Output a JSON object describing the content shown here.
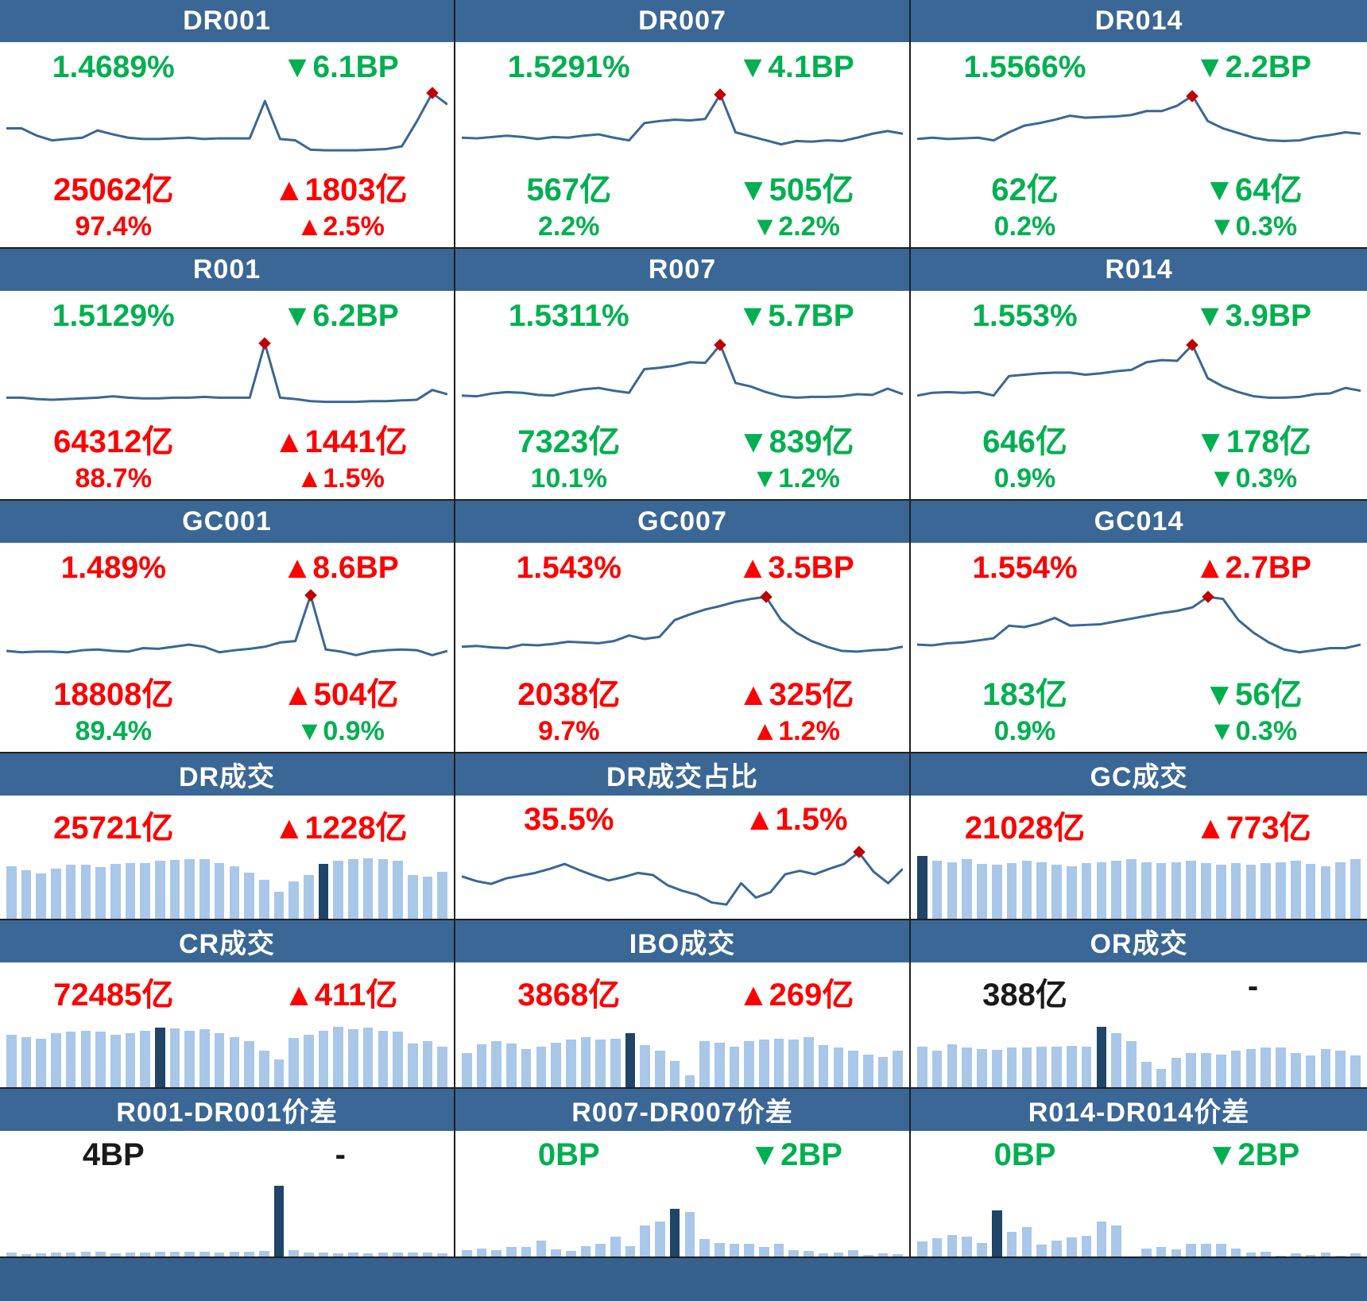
{
  "colors": {
    "header_bg": "#3A6795",
    "footer_bg": "#36618F",
    "line": "#3A6795",
    "bar_light": "#A9C7E8",
    "bar_dark": "#1F4568",
    "up_red": "#FF0000",
    "down_green": "#00B050",
    "peak_dot": "#C00000"
  },
  "chart_data": [
    {
      "title": "DR001",
      "type": "line",
      "legend_position": "none",
      "axes": "none (sparkline)",
      "stats": {
        "rate": {
          "text": "1.4689%",
          "color": "green"
        },
        "rate_chg": {
          "text": "▼6.1BP",
          "color": "green"
        },
        "vol": {
          "text": "25062亿",
          "color": "red"
        },
        "vol_chg": {
          "text": "▲1803亿",
          "color": "red"
        },
        "pct": {
          "text": "97.4%",
          "color": "red"
        },
        "pct_chg": {
          "text": "▲2.5%",
          "color": "red"
        }
      },
      "values": [
        0.44,
        0.44,
        0.33,
        0.26,
        0.28,
        0.3,
        0.41,
        0.35,
        0.3,
        0.28,
        0.28,
        0.29,
        0.3,
        0.28,
        0.29,
        0.29,
        0.29,
        0.85,
        0.28,
        0.26,
        0.12,
        0.11,
        0.11,
        0.11,
        0.12,
        0.13,
        0.17,
        0.55,
        0.97,
        0.8
      ],
      "marker_index": 28
    },
    {
      "title": "DR007",
      "type": "line",
      "stats": {
        "rate": {
          "text": "1.5291%",
          "color": "green"
        },
        "rate_chg": {
          "text": "▼4.1BP",
          "color": "green"
        },
        "vol": {
          "text": "567亿",
          "color": "green"
        },
        "vol_chg": {
          "text": "▼505亿",
          "color": "green"
        },
        "pct": {
          "text": "2.2%",
          "color": "green"
        },
        "pct_chg": {
          "text": "▼2.2%",
          "color": "green"
        }
      },
      "values": [
        0.3,
        0.29,
        0.31,
        0.33,
        0.31,
        0.28,
        0.31,
        0.3,
        0.33,
        0.35,
        0.3,
        0.26,
        0.52,
        0.55,
        0.57,
        0.56,
        0.58,
        0.95,
        0.38,
        0.32,
        0.26,
        0.2,
        0.25,
        0.24,
        0.26,
        0.25,
        0.3,
        0.36,
        0.4,
        0.36
      ],
      "marker_index": 17
    },
    {
      "title": "DR014",
      "type": "line",
      "stats": {
        "rate": {
          "text": "1.5566%",
          "color": "green"
        },
        "rate_chg": {
          "text": "▼2.2BP",
          "color": "green"
        },
        "vol": {
          "text": "62亿",
          "color": "green"
        },
        "vol_chg": {
          "text": "▼64亿",
          "color": "green"
        },
        "pct": {
          "text": "0.2%",
          "color": "green"
        },
        "pct_chg": {
          "text": "▼0.3%",
          "color": "green"
        }
      },
      "values": [
        0.28,
        0.3,
        0.28,
        0.29,
        0.3,
        0.26,
        0.38,
        0.48,
        0.52,
        0.57,
        0.63,
        0.6,
        0.61,
        0.62,
        0.64,
        0.7,
        0.7,
        0.78,
        0.93,
        0.55,
        0.44,
        0.37,
        0.3,
        0.26,
        0.25,
        0.26,
        0.31,
        0.34,
        0.38,
        0.36
      ],
      "marker_index": 18
    },
    {
      "title": "R001",
      "type": "line",
      "stats": {
        "rate": {
          "text": "1.5129%",
          "color": "green"
        },
        "rate_chg": {
          "text": "▼6.2BP",
          "color": "green"
        },
        "vol": {
          "text": "64312亿",
          "color": "red"
        },
        "vol_chg": {
          "text": "▲1441亿",
          "color": "red"
        },
        "pct": {
          "text": "88.7%",
          "color": "red"
        },
        "pct_chg": {
          "text": "▲1.5%",
          "color": "red"
        }
      },
      "values": [
        0.17,
        0.17,
        0.15,
        0.14,
        0.15,
        0.16,
        0.17,
        0.19,
        0.17,
        0.16,
        0.16,
        0.17,
        0.17,
        0.18,
        0.17,
        0.17,
        0.17,
        0.95,
        0.17,
        0.15,
        0.12,
        0.11,
        0.11,
        0.11,
        0.12,
        0.12,
        0.13,
        0.14,
        0.28,
        0.22
      ],
      "marker_index": 17
    },
    {
      "title": "R007",
      "type": "line",
      "stats": {
        "rate": {
          "text": "1.5311%",
          "color": "green"
        },
        "rate_chg": {
          "text": "▼5.7BP",
          "color": "green"
        },
        "vol": {
          "text": "7323亿",
          "color": "green"
        },
        "vol_chg": {
          "text": "▼839亿",
          "color": "green"
        },
        "pct": {
          "text": "10.1%",
          "color": "green"
        },
        "pct_chg": {
          "text": "▼1.2%",
          "color": "green"
        }
      },
      "values": [
        0.2,
        0.19,
        0.23,
        0.25,
        0.24,
        0.21,
        0.2,
        0.25,
        0.29,
        0.31,
        0.27,
        0.24,
        0.58,
        0.6,
        0.63,
        0.68,
        0.67,
        0.93,
        0.38,
        0.33,
        0.25,
        0.19,
        0.17,
        0.18,
        0.18,
        0.19,
        0.22,
        0.21,
        0.3,
        0.22
      ],
      "marker_index": 17
    },
    {
      "title": "R014",
      "type": "line",
      "stats": {
        "rate": {
          "text": "1.553%",
          "color": "green"
        },
        "rate_chg": {
          "text": "▼3.9BP",
          "color": "green"
        },
        "vol": {
          "text": "646亿",
          "color": "green"
        },
        "vol_chg": {
          "text": "▼178亿",
          "color": "green"
        },
        "pct": {
          "text": "0.9%",
          "color": "green"
        },
        "pct_chg": {
          "text": "▼0.3%",
          "color": "green"
        }
      },
      "values": [
        0.2,
        0.24,
        0.25,
        0.24,
        0.25,
        0.2,
        0.48,
        0.5,
        0.52,
        0.53,
        0.53,
        0.5,
        0.52,
        0.55,
        0.57,
        0.68,
        0.71,
        0.7,
        0.93,
        0.45,
        0.33,
        0.25,
        0.19,
        0.17,
        0.17,
        0.18,
        0.22,
        0.23,
        0.31,
        0.27
      ],
      "marker_index": 18
    },
    {
      "title": "GC001",
      "type": "line",
      "stats": {
        "rate": {
          "text": "1.489%",
          "color": "red"
        },
        "rate_chg": {
          "text": "▲8.6BP",
          "color": "red"
        },
        "vol": {
          "text": "18808亿",
          "color": "red"
        },
        "vol_chg": {
          "text": "▲504亿",
          "color": "red"
        },
        "pct": {
          "text": "89.4%",
          "color": "green"
        },
        "pct_chg": {
          "text": "▼0.9%",
          "color": "green"
        }
      },
      "values": [
        0.16,
        0.14,
        0.15,
        0.15,
        0.14,
        0.17,
        0.18,
        0.16,
        0.15,
        0.2,
        0.19,
        0.22,
        0.25,
        0.22,
        0.14,
        0.17,
        0.19,
        0.22,
        0.28,
        0.3,
        0.95,
        0.18,
        0.15,
        0.1,
        0.15,
        0.17,
        0.18,
        0.17,
        0.1,
        0.16
      ],
      "marker_index": 20
    },
    {
      "title": "GC007",
      "type": "line",
      "stats": {
        "rate": {
          "text": "1.543%",
          "color": "red"
        },
        "rate_chg": {
          "text": "▲3.5BP",
          "color": "red"
        },
        "vol": {
          "text": "2038亿",
          "color": "red"
        },
        "vol_chg": {
          "text": "▲325亿",
          "color": "red"
        },
        "pct": {
          "text": "9.7%",
          "color": "red"
        },
        "pct_chg": {
          "text": "▲1.2%",
          "color": "red"
        }
      },
      "values": [
        0.22,
        0.23,
        0.21,
        0.2,
        0.25,
        0.24,
        0.26,
        0.29,
        0.28,
        0.27,
        0.3,
        0.38,
        0.33,
        0.36,
        0.6,
        0.68,
        0.75,
        0.8,
        0.86,
        0.9,
        0.93,
        0.6,
        0.42,
        0.3,
        0.22,
        0.16,
        0.15,
        0.17,
        0.18,
        0.22
      ],
      "marker_index": 20
    },
    {
      "title": "GC014",
      "type": "line",
      "stats": {
        "rate": {
          "text": "1.554%",
          "color": "red"
        },
        "rate_chg": {
          "text": "▲2.7BP",
          "color": "red"
        },
        "vol": {
          "text": "183亿",
          "color": "green"
        },
        "vol_chg": {
          "text": "▼56亿",
          "color": "green"
        },
        "pct": {
          "text": "0.9%",
          "color": "green"
        },
        "pct_chg": {
          "text": "▼0.3%",
          "color": "green"
        }
      },
      "values": [
        0.25,
        0.24,
        0.27,
        0.28,
        0.31,
        0.34,
        0.52,
        0.5,
        0.55,
        0.63,
        0.52,
        0.53,
        0.54,
        0.58,
        0.62,
        0.66,
        0.7,
        0.73,
        0.78,
        0.93,
        0.9,
        0.6,
        0.42,
        0.28,
        0.18,
        0.14,
        0.17,
        0.2,
        0.2,
        0.25
      ],
      "marker_index": 19
    },
    {
      "title": "DR成交",
      "type": "bar",
      "stats": {
        "vol": {
          "text": "25721亿",
          "color": "red"
        },
        "vol_chg": {
          "text": "▲1228亿",
          "color": "red"
        }
      },
      "values": [
        0.82,
        0.75,
        0.7,
        0.78,
        0.84,
        0.84,
        0.8,
        0.85,
        0.87,
        0.86,
        0.9,
        0.91,
        0.93,
        0.92,
        0.86,
        0.82,
        0.72,
        0.6,
        0.42,
        0.58,
        0.68,
        0.85,
        0.9,
        0.93,
        0.94,
        0.92,
        0.9,
        0.68,
        0.65,
        0.73
      ],
      "highlight_index": 21
    },
    {
      "title": "DR成交占比",
      "type": "line",
      "stats": {
        "vol": {
          "text": "35.5%",
          "color": "red"
        },
        "vol_chg": {
          "text": "▲1.5%",
          "color": "red"
        }
      },
      "values": [
        0.55,
        0.48,
        0.44,
        0.52,
        0.56,
        0.6,
        0.66,
        0.73,
        0.64,
        0.56,
        0.49,
        0.54,
        0.6,
        0.57,
        0.42,
        0.34,
        0.28,
        0.17,
        0.14,
        0.45,
        0.24,
        0.32,
        0.58,
        0.63,
        0.58,
        0.66,
        0.73,
        0.9,
        0.62,
        0.45,
        0.66
      ],
      "marker_index": 27
    },
    {
      "title": "GC成交",
      "type": "bar",
      "stats": {
        "vol": {
          "text": "21028亿",
          "color": "red"
        },
        "vol_chg": {
          "text": "▲773亿",
          "color": "red"
        }
      },
      "values": [
        0.97,
        0.9,
        0.88,
        0.92,
        0.85,
        0.84,
        0.86,
        0.9,
        0.88,
        0.84,
        0.82,
        0.86,
        0.88,
        0.9,
        0.92,
        0.88,
        0.86,
        0.88,
        0.9,
        0.86,
        0.84,
        0.86,
        0.84,
        0.86,
        0.88,
        0.9,
        0.85,
        0.82,
        0.88,
        0.92
      ],
      "highlight_index": 0
    },
    {
      "title": "CR成交",
      "type": "bar",
      "stats": {
        "vol": {
          "text": "72485亿",
          "color": "red"
        },
        "vol_chg": {
          "text": "▲411亿",
          "color": "red"
        }
      },
      "values": [
        0.8,
        0.76,
        0.74,
        0.82,
        0.84,
        0.86,
        0.84,
        0.8,
        0.82,
        0.86,
        0.9,
        0.89,
        0.85,
        0.88,
        0.82,
        0.76,
        0.7,
        0.56,
        0.42,
        0.75,
        0.8,
        0.86,
        0.92,
        0.88,
        0.9,
        0.86,
        0.84,
        0.66,
        0.7,
        0.62
      ],
      "highlight_index": 10
    },
    {
      "title": "IBO成交",
      "type": "bar",
      "stats": {
        "vol": {
          "text": "3868亿",
          "color": "red"
        },
        "vol_chg": {
          "text": "▲269亿",
          "color": "red"
        }
      },
      "values": [
        0.52,
        0.65,
        0.7,
        0.66,
        0.58,
        0.62,
        0.68,
        0.72,
        0.76,
        0.72,
        0.74,
        0.82,
        0.64,
        0.56,
        0.4,
        0.18,
        0.7,
        0.68,
        0.62,
        0.7,
        0.72,
        0.74,
        0.72,
        0.76,
        0.64,
        0.6,
        0.56,
        0.5,
        0.46,
        0.55
      ],
      "highlight_index": 11
    },
    {
      "title": "OR成交",
      "type": "bar",
      "stats": {
        "vol": {
          "text": "388亿",
          "color": "black"
        },
        "vol_chg": {
          "text": "-",
          "color": "black"
        }
      },
      "values": [
        0.62,
        0.55,
        0.65,
        0.6,
        0.58,
        0.57,
        0.6,
        0.6,
        0.62,
        0.61,
        0.63,
        0.62,
        0.92,
        0.82,
        0.7,
        0.38,
        0.28,
        0.45,
        0.52,
        0.52,
        0.5,
        0.55,
        0.58,
        0.6,
        0.6,
        0.52,
        0.48,
        0.58,
        0.55,
        0.48
      ],
      "highlight_index": 12
    },
    {
      "title": "R001-DR001价差",
      "type": "bar",
      "stats": {
        "vol": {
          "text": "4BP",
          "color": "black"
        },
        "vol_chg": {
          "text": "-",
          "color": "black"
        }
      },
      "values": [
        0.05,
        0.03,
        0.04,
        0.05,
        0.05,
        0.06,
        0.06,
        0.04,
        0.05,
        0.05,
        0.06,
        0.06,
        0.06,
        0.06,
        0.05,
        0.06,
        0.06,
        0.07,
        0.92,
        0.08,
        0.05,
        0.05,
        0.04,
        0.05,
        0.04,
        0.05,
        0.05,
        0.05,
        0.05,
        0.04
      ],
      "highlight_index": 18
    },
    {
      "title": "R007-DR007价差",
      "type": "bar",
      "stats": {
        "vol": {
          "text": "0BP",
          "color": "green"
        },
        "vol_chg": {
          "text": "▼2BP",
          "color": "green"
        }
      },
      "values": [
        0.08,
        0.1,
        0.08,
        0.12,
        0.12,
        0.21,
        0.09,
        0.07,
        0.13,
        0.16,
        0.26,
        0.13,
        0.4,
        0.45,
        0.62,
        0.58,
        0.23,
        0.18,
        0.16,
        0.17,
        0.12,
        0.17,
        0.08,
        0.07,
        0.04,
        0.05,
        0.08,
        0.02,
        0.04,
        0.03
      ],
      "highlight_index": 14
    },
    {
      "title": "R014-DR014价差",
      "type": "bar",
      "stats": {
        "vol": {
          "text": "0BP",
          "color": "green"
        },
        "vol_chg": {
          "text": "▼2BP",
          "color": "green"
        }
      },
      "values": [
        0.2,
        0.24,
        0.28,
        0.26,
        0.18,
        0.6,
        0.32,
        0.38,
        0.15,
        0.21,
        0.25,
        0.27,
        0.45,
        0.4,
        0.0,
        0.1,
        0.12,
        0.09,
        0.16,
        0.16,
        0.16,
        0.1,
        0.05,
        0.06,
        0.01,
        0.04,
        0.02,
        0.05,
        0.01,
        0.04
      ],
      "highlight_index": 5
    }
  ]
}
